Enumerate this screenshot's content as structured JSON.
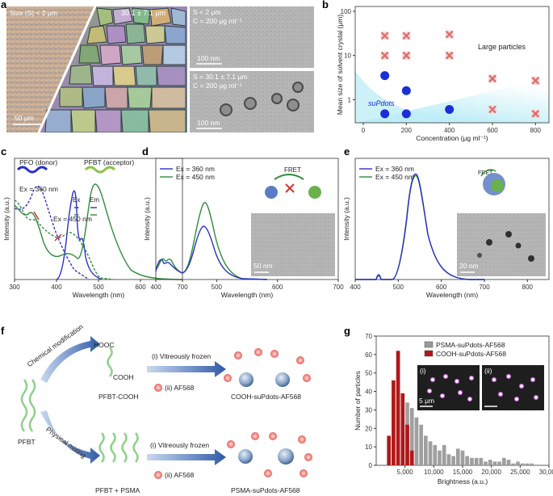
{
  "panels": {
    "a": "a",
    "b": "b",
    "c": "c",
    "d": "d",
    "e": "e",
    "f": "f",
    "g": "g"
  },
  "panel_a": {
    "left_label": "Size (S) < 2 μm",
    "mid_label": "30.1 ± 7.1 μm",
    "scale_left": "50 μm",
    "tem_top": {
      "line1": "S < 2 μm",
      "line2": "C = 200 μg ml⁻¹",
      "scale": "100 nm"
    },
    "tem_bottom": {
      "line1": "S = 30.1 ± 7.1 μm",
      "line2": "C = 200 μg ml⁻¹",
      "scale": "100 nm"
    }
  },
  "panel_b": {
    "ylabel": "Mean size of solvent crystal (μm)",
    "xlabel": "Concentration (μg ml⁻¹)",
    "xticks": [
      "0",
      "200",
      "400",
      "600",
      "800"
    ],
    "yticks": [
      "1",
      "10",
      "100"
    ],
    "large_label": "Large particles",
    "supdots_label": "suPdots",
    "colors": {
      "circle": "#1a2fd6",
      "cross": "#d96d6d",
      "shade": "#bfeef7"
    }
  },
  "panel_c": {
    "ylabel": "Intensity (a.u.)",
    "xlabel": "Wavelength (nm)",
    "xticks": [
      "300",
      "400",
      "500",
      "600",
      "700"
    ],
    "pfo": "PFO (donor)",
    "pfbt": "PFBT (acceptor)",
    "ex360": "Ex = 360 nm",
    "ex450": "Ex = 450 nm",
    "ex": "Ex",
    "em": "Em",
    "colors": {
      "pfo": "#2b2fc7",
      "pfbt": "#2e8b3a"
    }
  },
  "panel_d": {
    "ylabel": "Intensity (a.u.)",
    "xlabel": "Wavelength (nm)",
    "xticks": [
      "400",
      "500",
      "600",
      "700"
    ],
    "legend": [
      "Ex = 360 nm",
      "Ex = 450 nm"
    ],
    "fret": "FRET",
    "scale": "50 nm"
  },
  "panel_e": {
    "ylabel": "Intensity (a.u.)",
    "xlabel": "Wavelength (nm)",
    "xticks": [
      "400",
      "500",
      "600",
      "700",
      "800"
    ],
    "legend": [
      "Ex = 360 nm",
      "Ex = 450 nm"
    ],
    "fret": "FRET",
    "scale": "20 nm"
  },
  "panel_f": {
    "hooc": "HOOC",
    "cooh": "COOH",
    "chem_mod": "Chemical modification",
    "phys_mix": "Physical mixing",
    "pfbt": "PFBT",
    "pfbt_cooh": "PFBT-COOH",
    "pfbt_psma": "PFBT + PSMA",
    "step1": "(i) Vitreously frozen",
    "step2": "(ii) AF568",
    "cooh_product": "COOH-suPdots-AF568",
    "psma_product": "PSMA-suPdots-AF568"
  },
  "chart_data": {
    "type": "bar",
    "title": "",
    "xlabel": "Brightness (a.u.)",
    "ylabel": "Number of particles",
    "xlim": [
      0,
      30000
    ],
    "ylim": [
      0,
      70
    ],
    "xticks": [
      "5,000",
      "10,000",
      "15,000",
      "20,000",
      "25,000",
      "30,000"
    ],
    "yticks": [
      "0",
      "10",
      "20",
      "30",
      "40",
      "50",
      "60",
      "70"
    ],
    "legend_position": "top-right",
    "inset_labels": [
      "(i)",
      "(ii)"
    ],
    "inset_scale": "5 μm",
    "series": [
      {
        "name": "PSMA-suPdots-AF568",
        "color": "#9a9a9a",
        "bin_centers": [
          4600,
          5400,
          6200,
          7000,
          7800,
          8600,
          9400,
          10200,
          11000,
          11800,
          12600,
          13400,
          14200,
          15000,
          15800,
          16600,
          17400,
          18200,
          19000,
          19800,
          20600,
          21400,
          22200,
          23000,
          23800,
          24600,
          25400,
          26200,
          27000
        ],
        "values": [
          24,
          34,
          31,
          26,
          22,
          16,
          13,
          11,
          8,
          11,
          6,
          5,
          9,
          8,
          5,
          4,
          4,
          4,
          2,
          3,
          2,
          2,
          4,
          3,
          1,
          2,
          1,
          1,
          1
        ]
      },
      {
        "name": "COOH-suPdots-AF568",
        "color": "#b01818",
        "bin_centers": [
          2200,
          3000,
          3800,
          4600,
          5400,
          6200
        ],
        "values": [
          16,
          46,
          62,
          39,
          22,
          8
        ]
      }
    ]
  }
}
